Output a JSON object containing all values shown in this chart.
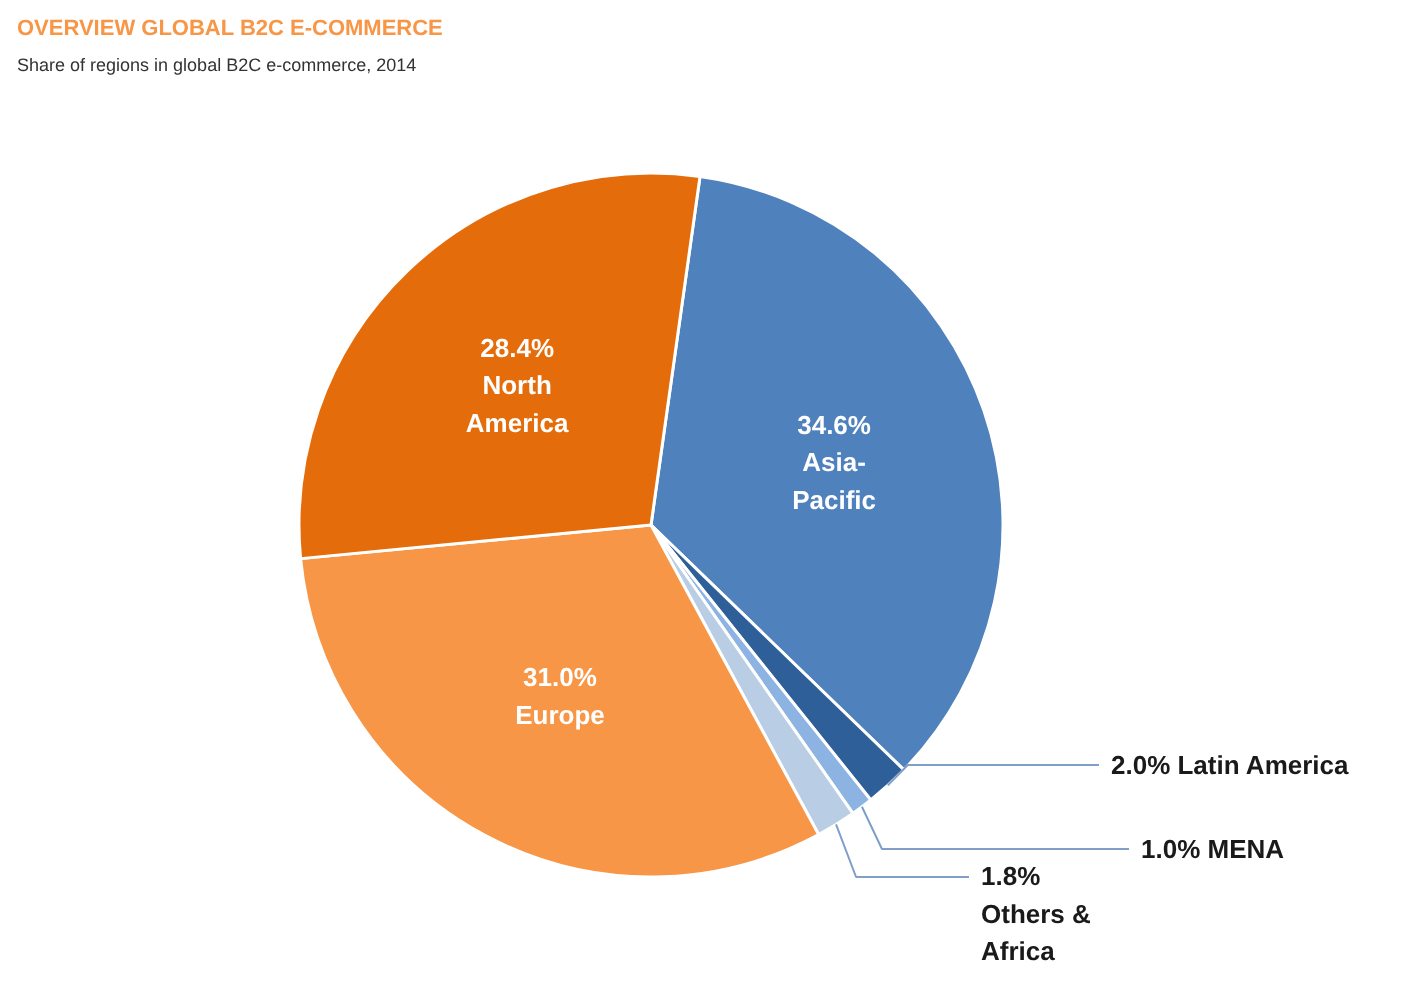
{
  "chart_data": {
    "type": "pie",
    "title": "OVERVIEW GLOBAL B2C E-COMMERCE",
    "subtitle": "Share of regions in global B2C e-commerce, 2014",
    "categories": [
      "Asia-Pacific",
      "Latin America",
      "MENA",
      "Others & Africa",
      "Europe",
      "North America"
    ],
    "values": [
      34.6,
      2.0,
      1.0,
      1.8,
      31.0,
      28.4
    ],
    "colors": [
      "#4f81bd",
      "#2f5f98",
      "#8db3e2",
      "#b9cde5",
      "#f79646",
      "#e46c0a"
    ],
    "value_labels": [
      "34.6%",
      "2.0%",
      "1.0%",
      "1.8%",
      "31.0%",
      "28.4%"
    ]
  }
}
